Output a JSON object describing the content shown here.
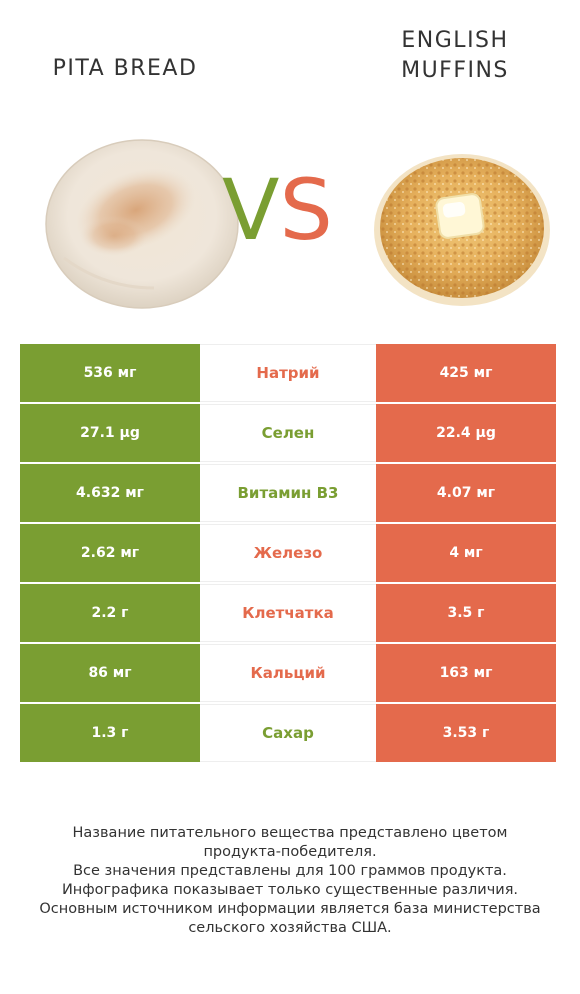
{
  "header": {
    "left_food": "PITA BREAD",
    "right_food_line1": "ENGLISH",
    "right_food_line2": "MUFFINS",
    "vs_v": "V",
    "vs_s": "S"
  },
  "colors": {
    "left_winner": "#7a9e32",
    "right_winner": "#e46a4c"
  },
  "rows": [
    {
      "left": "536 мг",
      "name": "Натрий",
      "right": "425 мг",
      "winner": "right"
    },
    {
      "left": "27.1 µg",
      "name": "Селен",
      "right": "22.4 µg",
      "winner": "left"
    },
    {
      "left": "4.632 мг",
      "name": "Витамин B3",
      "right": "4.07 мг",
      "winner": "left"
    },
    {
      "left": "2.62 мг",
      "name": "Железо",
      "right": "4 мг",
      "winner": "right"
    },
    {
      "left": "2.2 г",
      "name": "Клетчатка",
      "right": "3.5 г",
      "winner": "right"
    },
    {
      "left": "86 мг",
      "name": "Кальций",
      "right": "163 мг",
      "winner": "right"
    },
    {
      "left": "1.3 г",
      "name": "Сахар",
      "right": "3.53 г",
      "winner": "left"
    }
  ],
  "footer": {
    "line1": "Название питательного вещества представлено цветом",
    "line2": "продукта-победителя.",
    "line3": "Все значения представлены для 100 граммов продукта.",
    "line4": "Инфографика показывает только существенные различия.",
    "line5": "Основным источником информации является база министерства",
    "line6": "сельского хозяйства США."
  }
}
